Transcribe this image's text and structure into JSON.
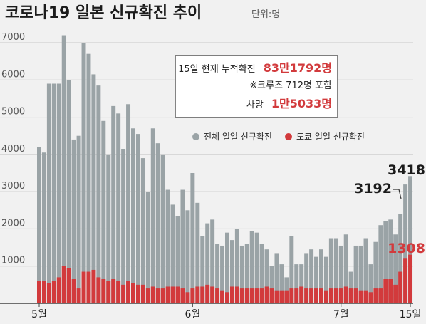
{
  "chart_data": {
    "type": "bar",
    "title": "코로나19 일본 신규확진 추이",
    "unit": "단위:명",
    "ylim": [
      0,
      7000
    ],
    "y_ticks": [
      1000,
      2000,
      3000,
      4000,
      5000,
      6000,
      7000
    ],
    "x_tick_labels": [
      {
        "label": "5월",
        "index": 0
      },
      {
        "label": "6월",
        "index": 31
      },
      {
        "label": "7월",
        "index": 61
      },
      {
        "label": "15일",
        "index": 75
      }
    ],
    "legend": [
      {
        "name": "전체 일일 신규확진",
        "color": "#9aa3a6"
      },
      {
        "name": "도쿄 일일 신규확진",
        "color": "#d23a3c"
      }
    ],
    "info_box": {
      "line1_label": "15일 현재 누적확진",
      "line1_value": "83만1792명",
      "line2": "※크루즈 712명 포함",
      "line3_label": "사망",
      "line3_value": "1만5033명"
    },
    "annotations": [
      {
        "text": "3418",
        "index": 75
      },
      {
        "text": "3192",
        "index": 74
      },
      {
        "text": "1308",
        "index": 75
      }
    ],
    "series": [
      {
        "name": "전체 일일 신규확진",
        "color": "#9aa3a6",
        "values": [
          4200,
          4050,
          5900,
          5900,
          5900,
          7200,
          6000,
          4400,
          4500,
          7000,
          6700,
          6150,
          5850,
          4900,
          4000,
          5300,
          5100,
          4150,
          5350,
          4700,
          4550,
          3900,
          3000,
          4700,
          4300,
          4000,
          3050,
          2650,
          2350,
          3050,
          2500,
          3500,
          2700,
          1800,
          2150,
          2250,
          1600,
          1550,
          1900,
          1700,
          2000,
          1550,
          1600,
          1950,
          1900,
          1600,
          1450,
          1000,
          1350,
          1050,
          700,
          1800,
          1050,
          1050,
          1350,
          1450,
          1250,
          1450,
          1250,
          1750,
          1750,
          1550,
          1850,
          850,
          1550,
          1550,
          1750,
          1050,
          1650,
          2100,
          2200,
          2250,
          1850,
          2400,
          3192,
          3418
        ]
      },
      {
        "name": "도쿄 일일 신규확진",
        "color": "#d23a3c",
        "values": [
          600,
          600,
          550,
          600,
          700,
          1000,
          950,
          650,
          400,
          850,
          850,
          900,
          700,
          650,
          600,
          650,
          600,
          500,
          600,
          550,
          500,
          500,
          400,
          450,
          400,
          400,
          450,
          450,
          450,
          400,
          300,
          400,
          450,
          450,
          500,
          450,
          400,
          350,
          300,
          450,
          450,
          400,
          400,
          400,
          400,
          400,
          450,
          400,
          350,
          350,
          350,
          400,
          400,
          450,
          400,
          400,
          400,
          400,
          350,
          400,
          400,
          400,
          450,
          400,
          400,
          350,
          350,
          300,
          400,
          400,
          650,
          650,
          500,
          850,
          1200,
          1308
        ]
      }
    ]
  }
}
